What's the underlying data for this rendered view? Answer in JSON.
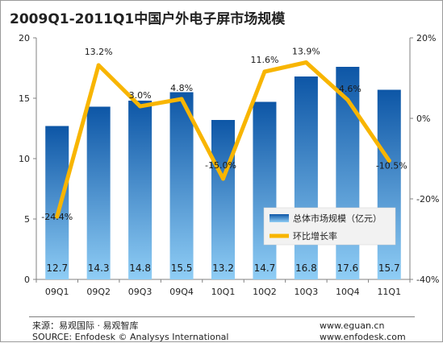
{
  "chart_data": {
    "type": "bar",
    "title": "2009Q1-2011Q1中国户外电子屏市场规模",
    "categories": [
      "09Q1",
      "09Q2",
      "09Q3",
      "09Q4",
      "10Q1",
      "10Q2",
      "10Q3",
      "10Q4",
      "11Q1"
    ],
    "series": [
      {
        "name": "总体市场规模（亿元）",
        "type": "bar",
        "axis": "left",
        "values": [
          12.7,
          14.3,
          14.8,
          15.5,
          13.2,
          14.7,
          16.8,
          17.6,
          15.7
        ],
        "labels": [
          "12.7",
          "14.3",
          "14.8",
          "15.5",
          "13.2",
          "14.7",
          "16.8",
          "17.6",
          "15.7"
        ]
      },
      {
        "name": "环比增长率",
        "type": "line",
        "axis": "right",
        "values": [
          -24.4,
          13.2,
          3.0,
          4.8,
          -15.0,
          11.6,
          13.9,
          4.6,
          -10.5
        ],
        "labels": [
          "-24.4%",
          "13.2%",
          "3.0%",
          "4.8%",
          "-15.0%",
          "11.6%",
          "13.9%",
          "4.6%",
          "-10.5%"
        ]
      }
    ],
    "ylim_left": [
      0,
      20
    ],
    "yticks_left": [
      "0",
      "5",
      "10",
      "15",
      "20"
    ],
    "ylim_right": [
      -40,
      20
    ],
    "yticks_right": [
      "-40%",
      "-20%",
      "0%",
      "20%"
    ],
    "grid": false,
    "legend_position": "bottom-right inside plot",
    "colors": {
      "bar_top": "#0d56a6",
      "bar_bottom": "#8fcdf5",
      "line": "#f8b500"
    }
  },
  "footer": {
    "source_cn": "来源：易观国际 · 易观智库",
    "source_en": "SOURCE: Enfodesk © Analysys International",
    "url1": "www.eguan.cn",
    "url2": "www.enfodesk.com"
  }
}
